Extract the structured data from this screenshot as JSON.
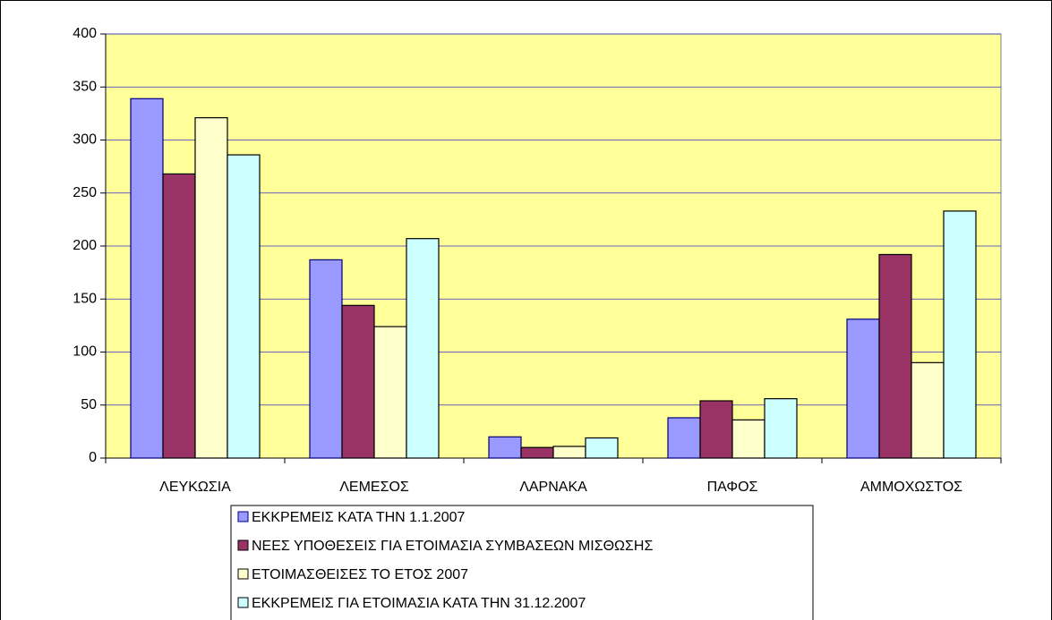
{
  "chart_data": {
    "type": "bar",
    "categories": [
      "ΛΕΥΚΩΣΙΑ",
      "ΛΕΜΕΣΟΣ",
      "ΛΑΡΝΑΚΑ",
      "ΠΑΦΟΣ",
      "ΑΜΜΟΧΩΣΤΟΣ"
    ],
    "series": [
      {
        "name": "ΕΚΚΡΕΜΕΙΣ ΚΑΤΑ ΤΗΝ 1.1.2007",
        "color": "#9999ff",
        "values": [
          339,
          187,
          20,
          38,
          131
        ]
      },
      {
        "name": "ΝΕΕΣ ΥΠΟΘΕΣΕΙΣ ΓΙΑ ΕΤΟΙΜΑΣΙΑ ΣΥΜΒΑΣΕΩΝ ΜΙΣΘΩΣΗΣ",
        "color": "#993366",
        "values": [
          268,
          144,
          10,
          54,
          192
        ]
      },
      {
        "name": "ΕΤΟΙΜΑΣΘΕΙΣΕΣ ΤΟ ΕΤΟΣ 2007",
        "color": "#ffffcc",
        "values": [
          321,
          124,
          11,
          36,
          90
        ]
      },
      {
        "name": "ΕΚΚΡΕΜΕΙΣ ΓΙΑ ΕΤΟΙΜΑΣΙΑ ΚΑΤΑ ΤΗΝ 31.12.2007",
        "color": "#ccffff",
        "values": [
          286,
          207,
          19,
          56,
          233
        ]
      }
    ],
    "ylim": [
      0,
      400
    ],
    "yticks": [
      0,
      50,
      100,
      150,
      200,
      250,
      300,
      350,
      400
    ],
    "grid": true,
    "plot_background": "#ffff99",
    "legend": "bottom"
  }
}
